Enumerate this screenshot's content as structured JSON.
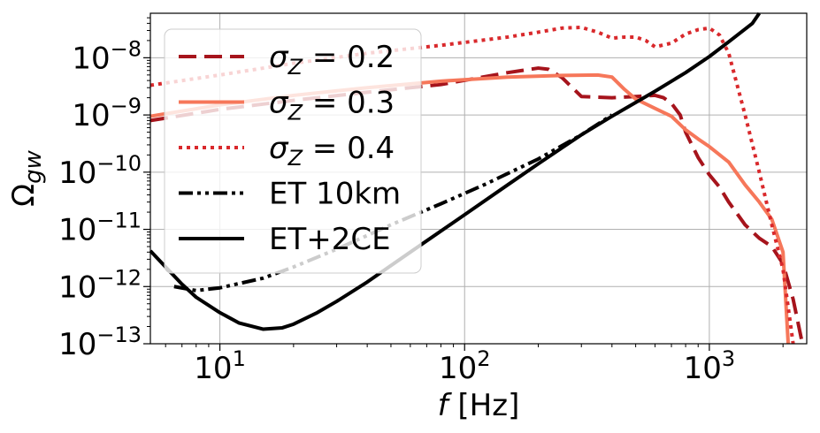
{
  "chart_data": {
    "type": "line",
    "title": "",
    "xlabel": "f [Hz]",
    "ylabel": "Ωgw",
    "xscale": "log",
    "yscale": "log",
    "xlim": [
      5.2,
      2500
    ],
    "ylim": [
      1e-13,
      6e-08
    ],
    "grid": true,
    "legend_position": "upper-left",
    "x_ticks": [
      {
        "value": 10,
        "base": "10",
        "exp": "1"
      },
      {
        "value": 100,
        "base": "10",
        "exp": "2"
      },
      {
        "value": 1000,
        "base": "10",
        "exp": "3"
      }
    ],
    "y_ticks": [
      {
        "value": 1e-08,
        "base": "10",
        "exp": "−8"
      },
      {
        "value": 1e-09,
        "base": "10",
        "exp": "−9"
      },
      {
        "value": 1e-10,
        "base": "10",
        "exp": "−10"
      },
      {
        "value": 1e-11,
        "base": "10",
        "exp": "−11"
      },
      {
        "value": 1e-12,
        "base": "10",
        "exp": "−12"
      },
      {
        "value": 1e-13,
        "base": "10",
        "exp": "−13"
      }
    ],
    "series": [
      {
        "name": "σZ = 0.2",
        "color": "#a6141c",
        "style": "dashed",
        "x": [
          5.2,
          10,
          20,
          40,
          80,
          150,
          200,
          220,
          250,
          300,
          400,
          500,
          600,
          650,
          700,
          760,
          800,
          900,
          1000,
          1100,
          1200,
          1400,
          1600,
          1800,
          2000,
          2200,
          2400
        ],
        "y": [
          8e-10,
          1.25e-09,
          1.8e-09,
          2.5e-09,
          3.4e-09,
          5.5e-09,
          6.6e-09,
          6.3e-09,
          4.5e-09,
          2.1e-09,
          2e-09,
          2.1e-09,
          2.2e-09,
          2e-09,
          1.6e-09,
          1e-09,
          5e-10,
          1.8e-10,
          9e-11,
          5.5e-11,
          3e-11,
          1.2e-11,
          7e-12,
          5e-12,
          2.5e-12,
          6e-13,
          1e-13
        ]
      },
      {
        "name": "σZ = 0.3",
        "color": "#f6775a",
        "style": "solid",
        "x": [
          5.2,
          10,
          20,
          40,
          80,
          150,
          250,
          350,
          400,
          450,
          500,
          600,
          700,
          800,
          900,
          1000,
          1200,
          1400,
          1600,
          1800,
          2000,
          2100
        ],
        "y": [
          9.5e-10,
          1.5e-09,
          2.2e-09,
          3e-09,
          3.9e-09,
          4.6e-09,
          4.9e-09,
          5e-09,
          4.6e-09,
          2.8e-09,
          1.9e-09,
          1.3e-09,
          9.5e-10,
          5.5e-10,
          3.8e-10,
          2.8e-10,
          1.5e-10,
          6e-11,
          3e-11,
          1.5e-11,
          4e-12,
          1e-13
        ]
      },
      {
        "name": "σZ = 0.4",
        "color": "#d9292c",
        "style": "dotted",
        "x": [
          5.2,
          10,
          20,
          40,
          80,
          150,
          200,
          250,
          300,
          350,
          400,
          450,
          500,
          550,
          600,
          700,
          800,
          900,
          1000,
          1100,
          1200,
          1400,
          1600,
          1800,
          2000,
          2200
        ],
        "y": [
          3.3e-09,
          5e-09,
          8e-09,
          1.2e-08,
          1.65e-08,
          2.3e-08,
          2.8e-08,
          3.3e-08,
          3.4e-08,
          2.8e-08,
          2.2e-08,
          2.3e-08,
          2.3e-08,
          2e-08,
          1.55e-08,
          1.8e-08,
          2.6e-08,
          3.1e-08,
          3.3e-08,
          2.5e-08,
          1.2e-08,
          1e-09,
          1e-10,
          1.2e-11,
          2e-12,
          1e-13
        ]
      },
      {
        "name": "ET 10km",
        "color": "#000000",
        "style": "dashdotdot",
        "x": [
          6.5,
          8,
          10,
          15,
          20,
          30,
          50,
          80,
          120,
          200,
          300,
          400
        ],
        "y": [
          1e-12,
          8.5e-13,
          9.5e-13,
          1.4e-12,
          2.2e-12,
          4.5e-12,
          1.2e-11,
          2.8e-11,
          6e-11,
          1.7e-10,
          4.5e-10,
          1e-09
        ]
      },
      {
        "name": "ET+2CE",
        "color": "#000000",
        "style": "solid",
        "x": [
          5.2,
          6,
          7,
          8,
          10,
          12,
          15,
          18,
          20,
          25,
          30,
          40,
          60,
          100,
          150,
          200,
          300,
          400,
          600,
          800,
          1000,
          1200,
          1500,
          1600
        ],
        "y": [
          4.2e-12,
          2.2e-12,
          1.1e-12,
          6.5e-13,
          3.5e-13,
          2.3e-13,
          1.8e-13,
          1.9e-13,
          2.2e-13,
          3.5e-13,
          5.5e-13,
          1.2e-12,
          4e-12,
          1.8e-11,
          6e-11,
          1.4e-10,
          4.5e-10,
          9.5e-10,
          2.6e-09,
          5.5e-09,
          1.05e-08,
          1.9e-08,
          4e-08,
          6e-08
        ]
      }
    ]
  }
}
